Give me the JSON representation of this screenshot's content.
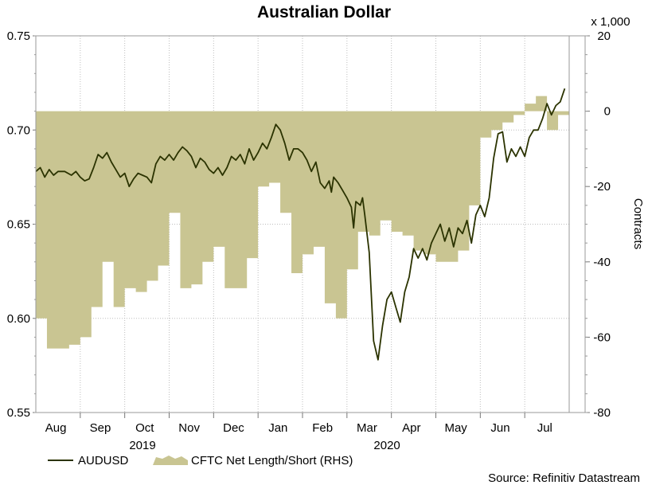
{
  "chart_data": {
    "type": "line",
    "title": "Australian Dollar",
    "rhs_multiplier_label": "x 1,000",
    "rhs_axis_label": "Contracts",
    "source": "Source: Refinitiv Datastream",
    "x_month_labels": [
      "Aug",
      "Sep",
      "Oct",
      "Nov",
      "Dec",
      "Jan",
      "Feb",
      "Mar",
      "Apr",
      "May",
      "Jun",
      "Jul"
    ],
    "x_year_labels": [
      "2019",
      "2020"
    ],
    "left_axis": {
      "ticks": [
        "0.75",
        "0.70",
        "0.65",
        "0.60",
        "0.55"
      ],
      "range": [
        0.55,
        0.75
      ]
    },
    "right_axis": {
      "ticks": [
        "20",
        "0",
        "-20",
        "-40",
        "-60",
        "-80"
      ],
      "range": [
        -80,
        20
      ]
    },
    "legend": {
      "line_label": "AUDUSD",
      "area_label": "CFTC Net Length/Short (RHS)"
    },
    "colors": {
      "line": "#2b3300",
      "area": "#c9c592",
      "grid": "#bdbdbd"
    },
    "series": [
      {
        "name": "AUDUSD",
        "axis": "left",
        "style": "line",
        "x_months_since_aug1_2019": [
          0.0,
          0.1,
          0.2,
          0.3,
          0.4,
          0.5,
          0.65,
          0.8,
          0.9,
          1.0,
          1.1,
          1.2,
          1.3,
          1.4,
          1.5,
          1.6,
          1.7,
          1.8,
          1.9,
          2.0,
          2.1,
          2.2,
          2.3,
          2.4,
          2.5,
          2.6,
          2.7,
          2.8,
          2.9,
          3.0,
          3.1,
          3.2,
          3.3,
          3.4,
          3.5,
          3.6,
          3.7,
          3.8,
          3.9,
          4.0,
          4.1,
          4.2,
          4.3,
          4.4,
          4.5,
          4.6,
          4.7,
          4.8,
          4.9,
          5.0,
          5.1,
          5.2,
          5.3,
          5.4,
          5.5,
          5.6,
          5.7,
          5.8,
          5.9,
          6.0,
          6.1,
          6.2,
          6.3,
          6.4,
          6.5,
          6.6,
          6.65,
          6.7,
          6.8,
          6.9,
          7.0,
          7.1,
          7.15,
          7.2,
          7.3,
          7.35,
          7.4,
          7.5,
          7.6,
          7.7,
          7.8,
          7.9,
          8.0,
          8.1,
          8.2,
          8.3,
          8.4,
          8.5,
          8.6,
          8.7,
          8.8,
          8.9,
          9.0,
          9.1,
          9.2,
          9.3,
          9.4,
          9.5,
          9.6,
          9.7,
          9.8,
          9.9,
          10.0,
          10.1,
          10.2,
          10.3,
          10.4,
          10.5,
          10.6,
          10.7,
          10.8,
          10.9,
          11.0,
          11.1,
          11.2,
          11.3,
          11.4,
          11.5,
          11.6,
          11.7,
          11.8,
          11.9
        ],
        "values": [
          0.678,
          0.68,
          0.675,
          0.679,
          0.676,
          0.678,
          0.678,
          0.676,
          0.678,
          0.675,
          0.673,
          0.674,
          0.68,
          0.687,
          0.685,
          0.688,
          0.683,
          0.679,
          0.675,
          0.677,
          0.67,
          0.674,
          0.677,
          0.676,
          0.675,
          0.672,
          0.682,
          0.686,
          0.684,
          0.687,
          0.684,
          0.688,
          0.691,
          0.689,
          0.686,
          0.68,
          0.685,
          0.683,
          0.679,
          0.677,
          0.68,
          0.676,
          0.68,
          0.686,
          0.684,
          0.687,
          0.682,
          0.69,
          0.684,
          0.688,
          0.693,
          0.69,
          0.696,
          0.703,
          0.7,
          0.693,
          0.684,
          0.69,
          0.69,
          0.688,
          0.684,
          0.678,
          0.683,
          0.672,
          0.669,
          0.673,
          0.667,
          0.675,
          0.672,
          0.668,
          0.664,
          0.659,
          0.648,
          0.662,
          0.66,
          0.664,
          0.655,
          0.635,
          0.588,
          0.578,
          0.596,
          0.61,
          0.614,
          0.606,
          0.598,
          0.614,
          0.622,
          0.637,
          0.632,
          0.637,
          0.631,
          0.64,
          0.645,
          0.65,
          0.641,
          0.648,
          0.638,
          0.648,
          0.645,
          0.652,
          0.64,
          0.655,
          0.66,
          0.654,
          0.664,
          0.685,
          0.698,
          0.699,
          0.683,
          0.69,
          0.686,
          0.691,
          0.686,
          0.696,
          0.7,
          0.7,
          0.706,
          0.714,
          0.708,
          0.713,
          0.715,
          0.722,
          0.718
        ],
        "note": "x values are months elapsed since the start of Aug 2019"
      },
      {
        "name": "CFTC Net Length/Short (RHS)",
        "axis": "right",
        "style": "area",
        "x_months_since_aug1_2019": [
          0.0,
          0.25,
          0.5,
          0.75,
          1.0,
          1.25,
          1.5,
          1.75,
          2.0,
          2.25,
          2.5,
          2.75,
          3.0,
          3.25,
          3.5,
          3.75,
          4.0,
          4.25,
          4.5,
          4.75,
          5.0,
          5.25,
          5.5,
          5.75,
          6.0,
          6.25,
          6.5,
          6.75,
          7.0,
          7.25,
          7.5,
          7.75,
          8.0,
          8.25,
          8.5,
          8.75,
          9.0,
          9.25,
          9.5,
          9.75,
          10.0,
          10.25,
          10.5,
          10.75,
          11.0,
          11.25,
          11.5,
          11.75,
          12.0
        ],
        "values": [
          -55,
          -63,
          -63,
          -62,
          -60,
          -52,
          -40,
          -52,
          -47,
          -48,
          -45,
          -41,
          -27,
          -47,
          -46,
          -40,
          -36,
          -47,
          -47,
          -39,
          -20,
          -19,
          -27,
          -43,
          -38,
          -36,
          -51,
          -55,
          -42,
          -32,
          -33,
          -29,
          -32,
          -33,
          -37,
          -38,
          -40,
          -40,
          -37,
          -25,
          -7,
          -5,
          -3,
          -1,
          2,
          4,
          -5,
          -1,
          -1
        ]
      }
    ]
  }
}
